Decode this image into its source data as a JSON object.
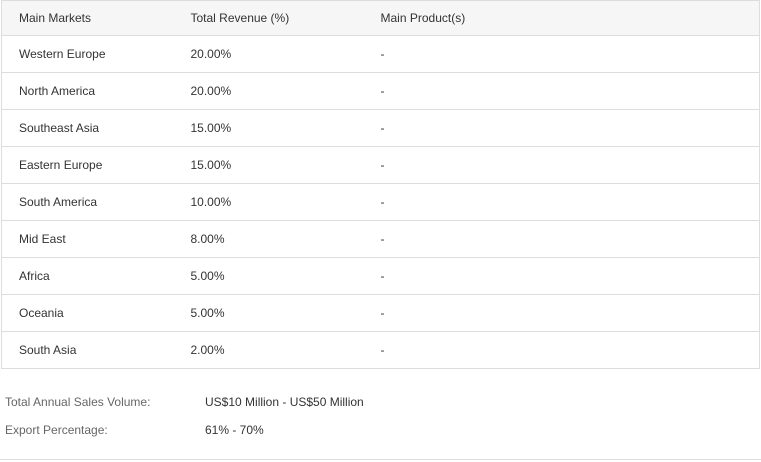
{
  "table": {
    "headers": {
      "market": "Main Markets",
      "revenue": "Total Revenue (%)",
      "product": "Main Product(s)"
    },
    "rows": [
      {
        "market": "Western Europe",
        "revenue": "20.00%",
        "product": "-"
      },
      {
        "market": "North America",
        "revenue": "20.00%",
        "product": "-"
      },
      {
        "market": "Southeast Asia",
        "revenue": "15.00%",
        "product": "-"
      },
      {
        "market": "Eastern Europe",
        "revenue": "15.00%",
        "product": "-"
      },
      {
        "market": "South America",
        "revenue": "10.00%",
        "product": "-"
      },
      {
        "market": "Mid East",
        "revenue": "8.00%",
        "product": "-"
      },
      {
        "market": "Africa",
        "revenue": "5.00%",
        "product": "-"
      },
      {
        "market": "Oceania",
        "revenue": "5.00%",
        "product": "-"
      },
      {
        "market": "South Asia",
        "revenue": "2.00%",
        "product": "-"
      }
    ]
  },
  "summary": {
    "sales_volume_label": "Total Annual Sales Volume:",
    "sales_volume_value": "US$10 Million - US$50 Million",
    "export_label": "Export Percentage:",
    "export_value": "61% - 70%"
  }
}
